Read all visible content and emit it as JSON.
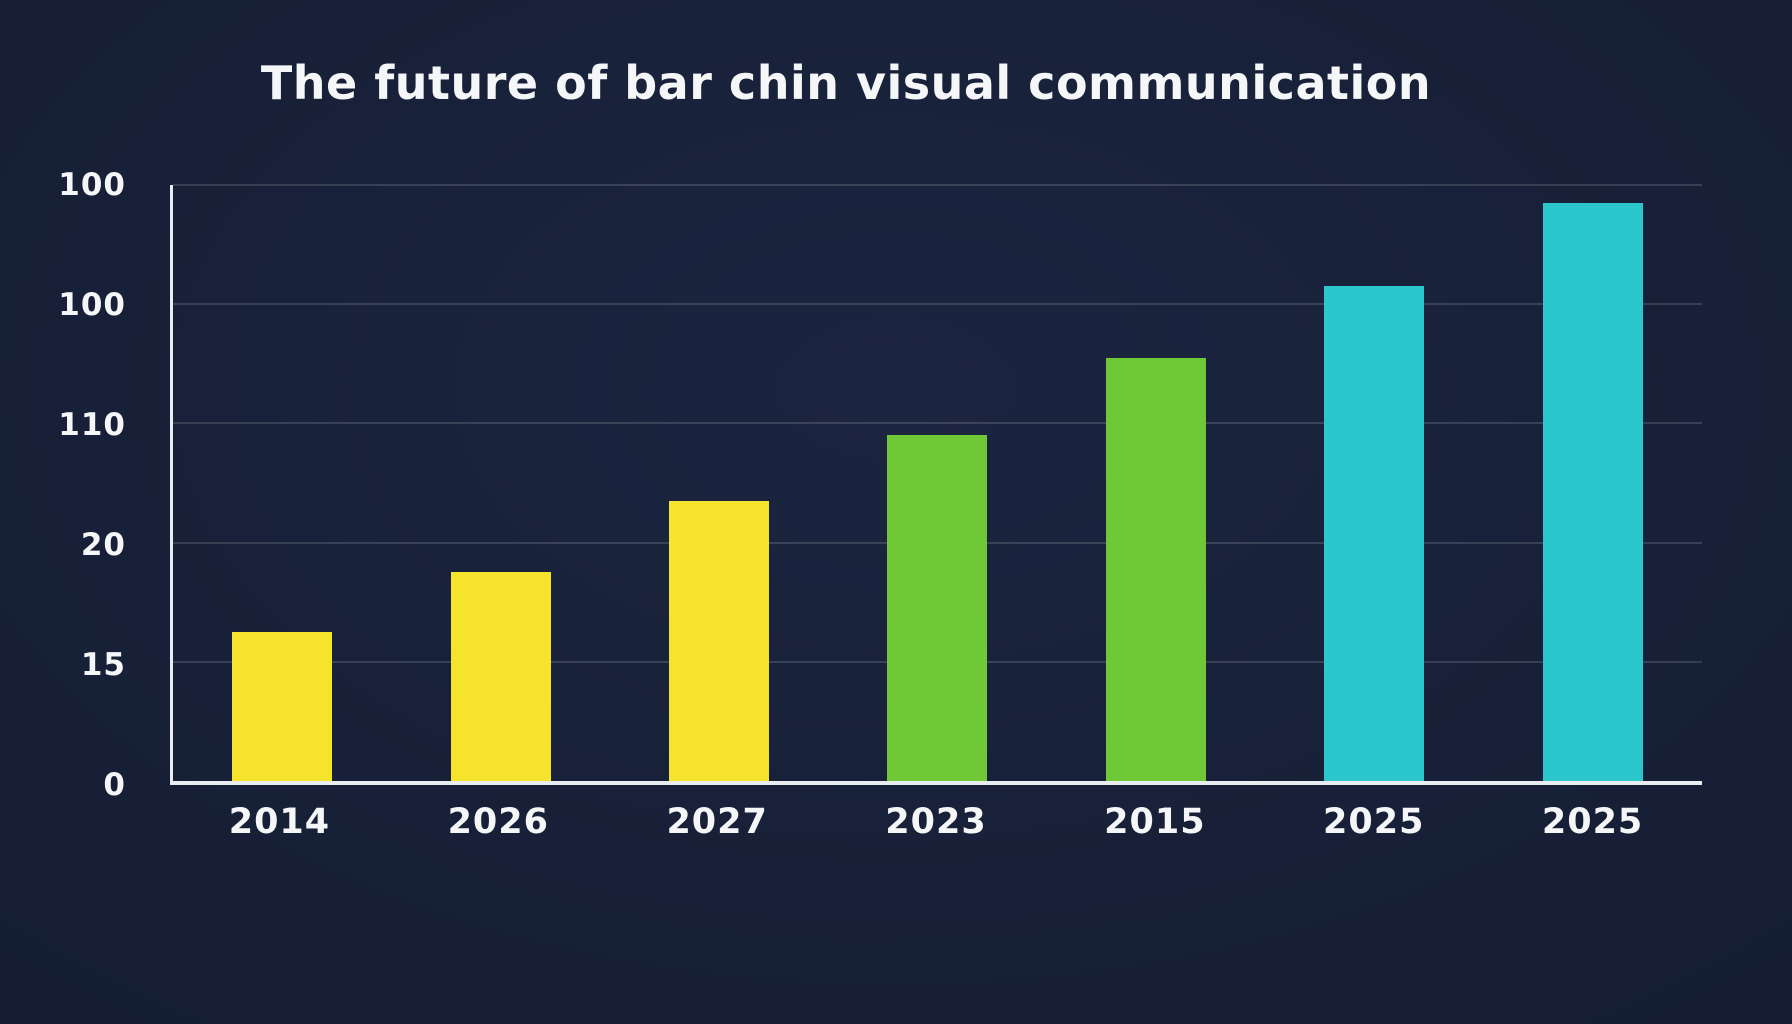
{
  "title": "The future of bar chin visual communication",
  "colors": {
    "background": "#141d33",
    "axis": "#e9edf2",
    "gridline": "rgba(255,255,255,0.14)",
    "text": "#f4f6f8"
  },
  "chart_data": {
    "type": "bar",
    "title": "The future of bar chin visual communication",
    "categories": [
      "2014",
      "2026",
      "2027",
      "2023",
      "2015",
      "2025",
      "2025"
    ],
    "values": [
      25,
      35,
      47,
      58,
      71,
      83,
      97
    ],
    "bar_colors": [
      "#f6e32b",
      "#f6e32b",
      "#f6e32b",
      "#6fc937",
      "#6fc937",
      "#2bc7cc",
      "#2bc7cc"
    ],
    "y_ticks": [
      {
        "label": "0",
        "position": 0
      },
      {
        "label": "15",
        "position": 20
      },
      {
        "label": "20",
        "position": 40
      },
      {
        "label": "110",
        "position": 60
      },
      {
        "label": "100",
        "position": 80
      },
      {
        "label": "100",
        "position": 100
      }
    ],
    "ylim": [
      0,
      100
    ],
    "grid": true,
    "legend": false,
    "xlabel": "",
    "ylabel": ""
  }
}
